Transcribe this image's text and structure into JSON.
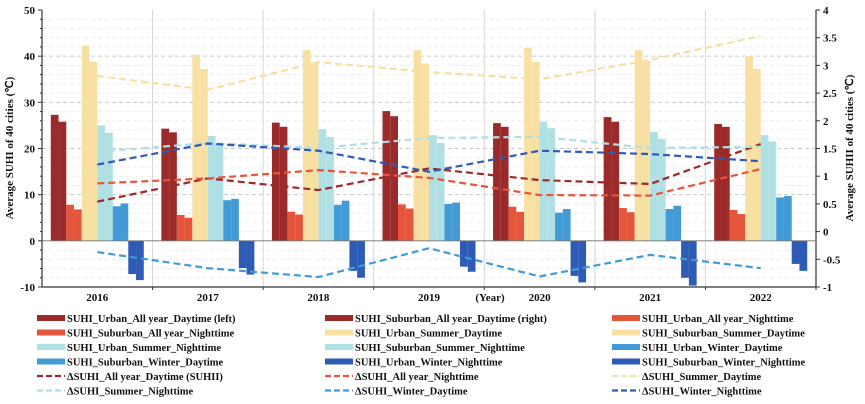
{
  "chart_data": {
    "type": "bar",
    "xlabel": "(Year)",
    "ylabel_left": "Average SUHI of 40 cities (℃)",
    "ylabel_right": "Average SUHII of 40 cities (℃)",
    "ylim_left": [
      -10,
      50
    ],
    "ylim_right": [
      -1,
      4
    ],
    "yticks_left": [
      -10,
      0,
      10,
      20,
      30,
      40,
      50
    ],
    "yticks_right": [
      "-1",
      "-0.5",
      "0",
      "0.5",
      "1",
      "1.5",
      "2",
      "2.5",
      "3",
      "3.5",
      "4"
    ],
    "grid": true,
    "legend_placement": "bottom",
    "categories": [
      "2016",
      "2017",
      "2018",
      "2019",
      "2020",
      "2021",
      "2022"
    ],
    "bar_series": [
      {
        "name": "SUHI_Urban_All year_Daytime (left)",
        "color": "#9b2a2a",
        "values": [
          27.3,
          24.3,
          25.6,
          28.1,
          25.5,
          26.8,
          25.3
        ]
      },
      {
        "name": "SUHI_Suburban_All year_Daytime (right)",
        "color": "#9b2a2a",
        "values": [
          25.8,
          23.5,
          24.7,
          27.0,
          24.7,
          25.8,
          24.7
        ]
      },
      {
        "name": "SUHI_Urban_All year_Nighttime",
        "color": "#e5553b",
        "values": [
          7.8,
          5.6,
          6.3,
          7.9,
          7.4,
          7.1,
          6.7
        ]
      },
      {
        "name": "SUHI_Suburban_All year_Nighttime",
        "color": "#e5553b",
        "values": [
          6.8,
          5.0,
          5.7,
          7.0,
          6.3,
          6.2,
          5.8
        ]
      },
      {
        "name": "SUHI_Urban_Summer_Daytime",
        "color": "#f8e0a3",
        "values": [
          42.3,
          40.3,
          41.3,
          41.3,
          41.8,
          41.3,
          40.0
        ]
      },
      {
        "name": "SUHI_Suburban_Summer_Daytime",
        "color": "#f8e0a3",
        "values": [
          38.8,
          37.2,
          38.6,
          38.4,
          38.8,
          39.0,
          37.2
        ]
      },
      {
        "name": "SUHI_Urban_Summer_Nighttime",
        "color": "#b1e0e4",
        "values": [
          25.0,
          22.7,
          24.2,
          22.9,
          25.8,
          23.6,
          22.9
        ]
      },
      {
        "name": "SUHI_Suburban_Summer_Nighttime",
        "color": "#b1e0e4",
        "values": [
          23.4,
          21.0,
          22.5,
          21.2,
          24.4,
          22.1,
          21.5
        ]
      },
      {
        "name": "SUHI_Urban_Winter_Daytime",
        "color": "#429bd6",
        "values": [
          7.5,
          8.8,
          7.8,
          8.0,
          6.1,
          6.9,
          9.4
        ]
      },
      {
        "name": "SUHI_Suburban_Winter_Daytime",
        "color": "#429bd6",
        "values": [
          8.1,
          9.1,
          8.7,
          8.3,
          6.9,
          7.6,
          9.7
        ]
      },
      {
        "name": "SUHI_Urban_Winter_Nighttime",
        "color": "#2d5bb5",
        "values": [
          -7.2,
          -5.9,
          -6.5,
          -5.6,
          -7.6,
          -8.0,
          -5.0
        ]
      },
      {
        "name": "SUHI_Suburban_Winter_Nighttime",
        "color": "#2d5bb5",
        "values": [
          -8.5,
          -7.3,
          -8.0,
          -6.7,
          -9.0,
          -9.7,
          -6.5
        ]
      }
    ],
    "line_series": [
      {
        "name": "ΔSUHI_All year_Daytime (SUHII)",
        "color": "#9b2a2a",
        "axis": "right",
        "values": [
          0.54,
          0.96,
          0.75,
          1.14,
          0.93,
          0.86,
          1.58
        ]
      },
      {
        "name": "ΔSUHI_All year_Nighttime",
        "color": "#e5553b",
        "axis": "right",
        "values": [
          0.87,
          0.96,
          1.11,
          0.97,
          0.66,
          0.65,
          1.13
        ]
      },
      {
        "name": "ΔSUHI_Summer_Daytime",
        "color": "#f8e0a3",
        "axis": "right",
        "values": [
          2.81,
          2.56,
          3.06,
          2.88,
          2.75,
          3.1,
          3.53
        ]
      },
      {
        "name": "ΔSUHI_Summer_Nighttime",
        "color": "#b1e0e4",
        "axis": "right",
        "values": [
          1.44,
          1.6,
          1.51,
          1.69,
          1.71,
          1.51,
          1.53
        ]
      },
      {
        "name": "ΔSUHI_Winter_Daytime",
        "color": "#429bd6",
        "axis": "right",
        "values": [
          -0.37,
          -0.66,
          -0.82,
          -0.3,
          -0.81,
          -0.42,
          -0.66
        ]
      },
      {
        "name": "ΔSUHI_Winter_Nighttime",
        "color": "#2d5bb5",
        "axis": "right",
        "values": [
          1.21,
          1.59,
          1.46,
          1.08,
          1.46,
          1.4,
          1.27
        ]
      }
    ]
  }
}
